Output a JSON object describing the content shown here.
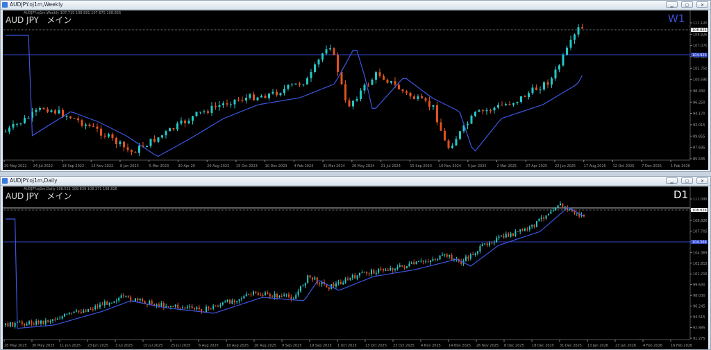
{
  "window1": {
    "title": "AUDJPY.oj1m,Weekly",
    "info": "AUDJPY.oj1m,Weekly 107.719 108.891 107.675 108.826",
    "symbol": "AUD JPY",
    "mode": "メイン",
    "timeframe": "W1",
    "timeframe_color": "#3b4fd8",
    "price_ticks": [
      "111.120",
      "108.826",
      "107.070",
      "104.920",
      "102.750",
      "100.590",
      "98.430",
      "96.250",
      "94.170",
      "92.015",
      "89.855",
      "87.695",
      "85.535"
    ],
    "current_price": "108.826",
    "hline_price": "104.920",
    "date_ticks": [
      "29 May 2022",
      "24 Jul 2022",
      "18 Sep 2022",
      "13 Nov 2022",
      "8 Jan 2023",
      "5 Mar 2023",
      "30 Apr 20",
      "20 Aug 2023",
      "15 Oct 2023",
      "10 Dec 2023",
      "4 Feb 2024",
      "31 Mar 2024",
      "26 May 2024",
      "21 Jul 2024",
      "15 Sep 2024",
      "10 Nov 2024",
      "5 Jan 2025",
      "2 Mar 2025",
      "27 Apr 2025",
      "22 Jun 2025",
      "17 Aug 2025",
      "12 Oct 2025",
      "7 Dec 2025",
      "1 Feb 2026"
    ]
  },
  "window2": {
    "title": "AUDJPY.oj1m,Daily",
    "info": "AUDJPY.oj1m,Daily 108.521 108.839 108.371 108.826",
    "symbol": "AUD JPY",
    "mode": "メイン",
    "timeframe": "D1",
    "timeframe_color": "#ffffff",
    "price_ticks": [
      "111.095",
      "109.400",
      "108.826",
      "107.705",
      "106.145",
      "104.369",
      "102.815",
      "101.215",
      "99.630",
      "98.030",
      "96.245",
      "94.515",
      "92.885",
      "91.275"
    ],
    "current_price": "108.826",
    "hline_price": "104.369",
    "date_ticks": [
      "28 May 2025",
      "30 May 2025",
      "11 Jun 2025",
      "23 Jun 2025",
      "3 Jul 2025",
      "15 Jul 2025",
      "25 Jul 2025",
      "6 Aug 2025",
      "18 Aug 2025",
      "28 Aug 2025",
      "9 Sep 2025",
      "19 Sep 2025",
      "1 Oct 2025",
      "13 Oct 2025",
      "23 Oct 2025",
      "4 Nov 2025",
      "14 Nov 2025",
      "26 Nov 2025",
      "8 Dec 2025",
      "18 Dec 2025",
      "31 Dec 2025",
      "13 Jan 2026",
      "23 Jan 2026",
      "4 Feb 2026",
      "16 Feb 2026"
    ]
  },
  "colors": {
    "bull": "#26c6c6",
    "bear": "#e0521f",
    "ma": "#3d56e0",
    "hline": "#3146c9",
    "grid": "#7a7a7a"
  }
}
